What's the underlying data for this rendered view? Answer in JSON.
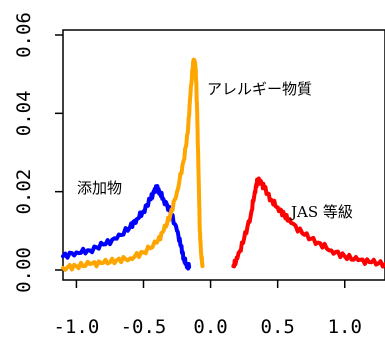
{
  "chart_data": {
    "type": "line",
    "xlim": [
      -1.1,
      1.3
    ],
    "ylim": [
      0,
      0.06
    ],
    "grid": false,
    "legend": "none",
    "x_ticks": [
      -1.0,
      -0.5,
      0.0,
      0.5,
      1.0
    ],
    "x_tick_labels": [
      "-1.0",
      "-0.5",
      "0.0",
      "0.5",
      "1.0"
    ],
    "y_ticks": [
      0.0,
      0.02,
      0.04,
      0.06
    ],
    "y_tick_labels": [
      "0.00",
      "0.02",
      "0.04",
      "0.06"
    ],
    "series": [
      {
        "name": "添加物",
        "color": "#0000ff",
        "x": [
          -1.1,
          -1.0,
          -0.9,
          -0.8,
          -0.7,
          -0.6,
          -0.55,
          -0.5,
          -0.45,
          -0.42,
          -0.4,
          -0.38,
          -0.35,
          -0.3,
          -0.25,
          -0.22,
          -0.2,
          -0.18,
          -0.16
        ],
        "y": [
          0.0035,
          0.0045,
          0.005,
          0.0065,
          0.008,
          0.011,
          0.013,
          0.015,
          0.018,
          0.02,
          0.021,
          0.02,
          0.018,
          0.015,
          0.01,
          0.006,
          0.003,
          0.0015,
          0.0008
        ]
      },
      {
        "name": "アレルギー物質",
        "color": "#ffa500",
        "x": [
          -1.1,
          -1.0,
          -0.9,
          -0.8,
          -0.7,
          -0.6,
          -0.5,
          -0.4,
          -0.35,
          -0.3,
          -0.25,
          -0.2,
          -0.17,
          -0.15,
          -0.13,
          -0.12,
          -0.11,
          -0.1,
          -0.09,
          -0.08,
          -0.07,
          -0.06
        ],
        "y": [
          0.0005,
          0.001,
          0.0015,
          0.0018,
          0.0025,
          0.003,
          0.0045,
          0.007,
          0.01,
          0.014,
          0.02,
          0.028,
          0.035,
          0.045,
          0.053,
          0.0535,
          0.051,
          0.04,
          0.025,
          0.01,
          0.004,
          0.001
        ]
      },
      {
        "name": "JAS 等級",
        "color": "#ff0000",
        "x": [
          0.17,
          0.2,
          0.25,
          0.3,
          0.33,
          0.35,
          0.38,
          0.4,
          0.45,
          0.5,
          0.55,
          0.6,
          0.7,
          0.8,
          0.9,
          1.0,
          1.1,
          1.2,
          1.3
        ],
        "y": [
          0.001,
          0.003,
          0.008,
          0.014,
          0.02,
          0.023,
          0.022,
          0.021,
          0.018,
          0.016,
          0.014,
          0.012,
          0.009,
          0.007,
          0.005,
          0.0035,
          0.0025,
          0.002,
          0.0015
        ]
      }
    ],
    "annotations": [
      {
        "text": "添加物",
        "series": 0
      },
      {
        "text": "アレルギー物質",
        "series": 1
      },
      {
        "text": "JAS 等級",
        "series": 2
      }
    ]
  }
}
